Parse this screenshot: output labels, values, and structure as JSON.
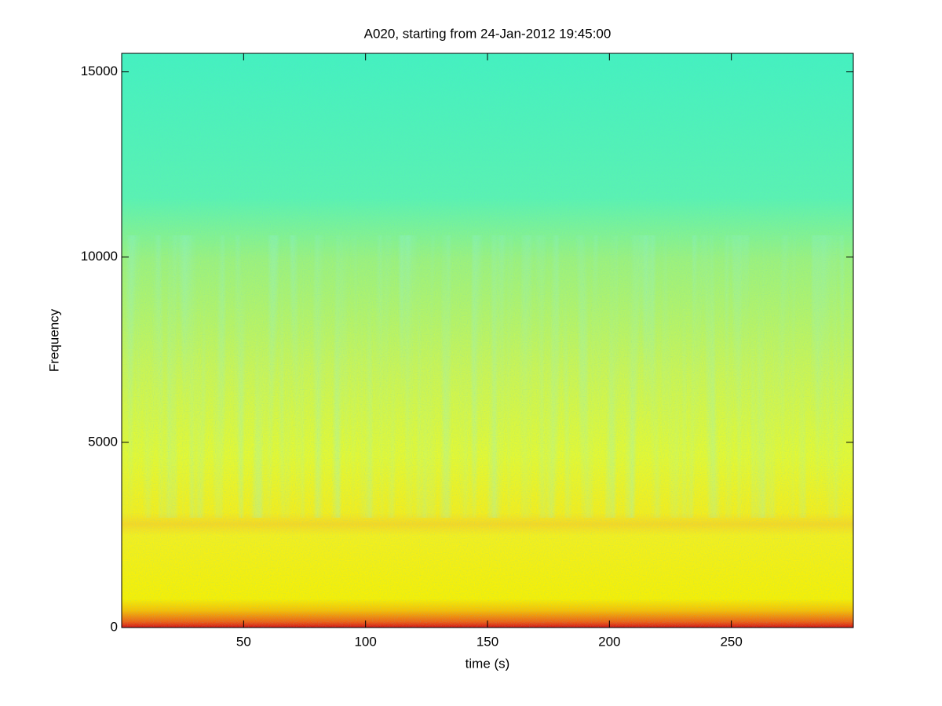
{
  "chart_data": {
    "type": "spectrogram",
    "title": "A020, starting from 24-Jan-2012 19:45:00",
    "xlabel": "time (s)",
    "ylabel": "Frequency",
    "xlim": [
      0,
      300
    ],
    "ylim": [
      0,
      15500
    ],
    "xticks": [
      50,
      100,
      150,
      200,
      250
    ],
    "yticks": [
      0,
      5000,
      10000,
      15000
    ]
  }
}
